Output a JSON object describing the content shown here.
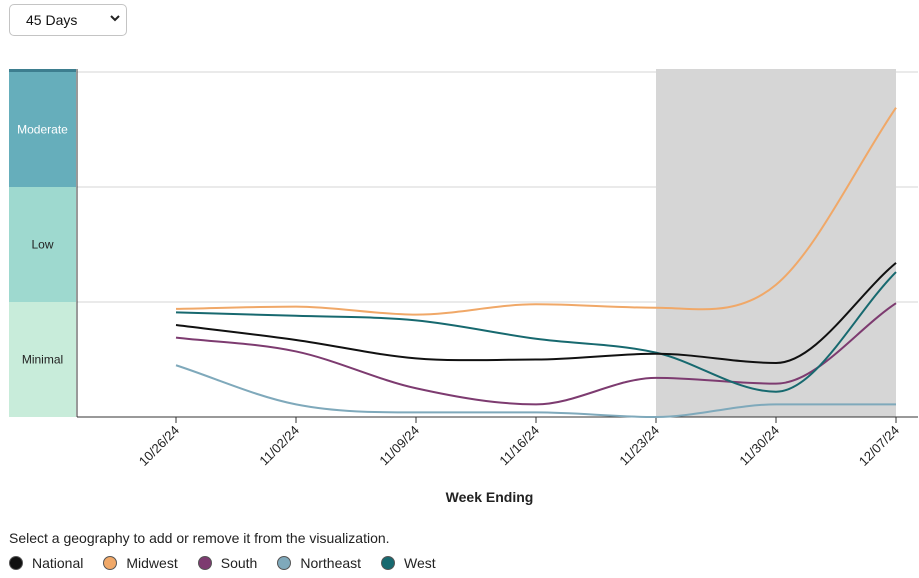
{
  "range_select": {
    "value": "45 Days"
  },
  "hint": "Select a geography to add or remove it from the visualization.",
  "chart_data": {
    "type": "line",
    "xlabel": "Week Ending",
    "ylabel": "",
    "categories": [
      "10/26/24",
      "11/02/24",
      "11/09/24",
      "11/16/24",
      "11/23/24",
      "11/30/24",
      "12/07/24"
    ],
    "levels": [
      {
        "label": "Minimal",
        "color": "#c8ecda"
      },
      {
        "label": "Low",
        "color": "#9ed9cf"
      },
      {
        "label": "Moderate",
        "color": "#66aebb"
      },
      {
        "label": "",
        "color": "#3d7e8f"
      }
    ],
    "ylim": [
      0,
      3.05
    ],
    "grid": true,
    "shaded_region": {
      "from": "11/23/24",
      "to": "12/07/24",
      "color": "#d6d6d6"
    },
    "series": [
      {
        "name": "National",
        "color": "#111111",
        "values": [
          0.8,
          0.67,
          0.51,
          0.5,
          0.55,
          0.47,
          1.34
        ]
      },
      {
        "name": "Midwest",
        "color": "#f0a868",
        "values": [
          0.94,
          0.96,
          0.89,
          0.98,
          0.95,
          1.15,
          2.69
        ]
      },
      {
        "name": "South",
        "color": "#7d3b70",
        "values": [
          0.69,
          0.57,
          0.25,
          0.11,
          0.34,
          0.29,
          0.99
        ]
      },
      {
        "name": "Northeast",
        "color": "#7fa9bb",
        "values": [
          0.45,
          0.11,
          0.04,
          0.04,
          0.0,
          0.11,
          0.11
        ]
      },
      {
        "name": "West",
        "color": "#17696f",
        "values": [
          0.91,
          0.88,
          0.84,
          0.68,
          0.56,
          0.22,
          1.26
        ]
      }
    ]
  }
}
